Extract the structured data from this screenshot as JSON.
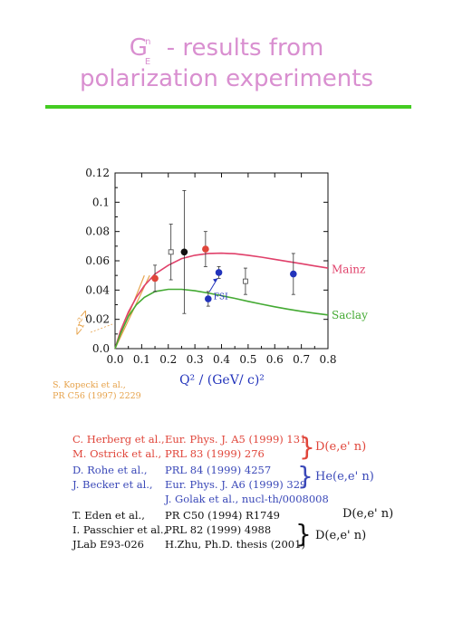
{
  "title": {
    "line1_prefix": "G",
    "line1_sub": "E",
    "line1_sup": "n",
    "line1_rest": " - results from",
    "line2": "polarization  experiments"
  },
  "chart_data": {
    "type": "scatter",
    "xlabel": "Q² / (GeV/ c)²",
    "ylabel": "",
    "xlim": [
      0.0,
      0.8
    ],
    "ylim": [
      0.0,
      0.12
    ],
    "xticks": [
      "0.0",
      "0.1",
      "0.2",
      "0.3",
      "0.4",
      "0.5",
      "0.6",
      "0.7",
      "0.8"
    ],
    "yticks": [
      "0.0",
      "0.02",
      "0.04",
      "0.06",
      "0.08",
      "0.1",
      "0.12"
    ],
    "curves": [
      {
        "name": "Mainz",
        "color": "#e0406a",
        "x": [
          0,
          0.02,
          0.05,
          0.08,
          0.11,
          0.15,
          0.2,
          0.25,
          0.3,
          0.35,
          0.4,
          0.45,
          0.5,
          0.55,
          0.6,
          0.65,
          0.7,
          0.75,
          0.8
        ],
        "y": [
          0,
          0.012,
          0.025,
          0.035,
          0.043,
          0.051,
          0.057,
          0.0615,
          0.0638,
          0.065,
          0.0652,
          0.0648,
          0.0638,
          0.0625,
          0.061,
          0.0595,
          0.058,
          0.0565,
          0.055
        ]
      },
      {
        "name": "Saclay",
        "color": "#44aa33",
        "x": [
          0,
          0.02,
          0.05,
          0.08,
          0.11,
          0.15,
          0.2,
          0.25,
          0.3,
          0.35,
          0.4,
          0.45,
          0.5,
          0.55,
          0.6,
          0.65,
          0.7,
          0.75,
          0.8
        ],
        "y": [
          0,
          0.01,
          0.022,
          0.03,
          0.035,
          0.039,
          0.0405,
          0.0405,
          0.0395,
          0.038,
          0.0362,
          0.0343,
          0.0323,
          0.0304,
          0.0286,
          0.027,
          0.0255,
          0.0242,
          0.023
        ]
      }
    ],
    "slope_lines": [
      {
        "color": "#e6a24a",
        "x": [
          0.0,
          0.13
        ],
        "y": [
          0.0,
          0.05
        ]
      },
      {
        "color": "#e6a24a",
        "x": [
          0.0,
          0.11
        ],
        "y": [
          0.0,
          0.05
        ]
      }
    ],
    "points": [
      {
        "x": 0.15,
        "y": 0.048,
        "err": 0.009,
        "color": "#e0453a",
        "style": "filled"
      },
      {
        "x": 0.21,
        "y": 0.066,
        "err": 0.019,
        "color": "#555555",
        "style": "open"
      },
      {
        "x": 0.26,
        "y": 0.066,
        "err": 0.042,
        "color": "#111111",
        "style": "filled"
      },
      {
        "x": 0.34,
        "y": 0.068,
        "err": 0.012,
        "color": "#e0453a",
        "style": "filled"
      },
      {
        "x": 0.35,
        "y": 0.034,
        "err": 0.005,
        "color": "#2233bb",
        "style": "filled"
      },
      {
        "x": 0.39,
        "y": 0.052,
        "err": 0.004,
        "color": "#2233bb",
        "style": "filled"
      },
      {
        "x": 0.49,
        "y": 0.046,
        "err": 0.009,
        "color": "#555555",
        "style": "open"
      },
      {
        "x": 0.67,
        "y": 0.051,
        "err": 0.014,
        "color": "#2233bb",
        "style": "filled"
      }
    ],
    "annotations": {
      "fsi": "FSI",
      "rmsr": "<r²>",
      "mainz": "Mainz",
      "saclay": "Saclay"
    }
  },
  "kopecki": {
    "line1": "S. Kopecki et al.,",
    "line2": "PR C56 (1997) 2229"
  },
  "references": [
    {
      "author": "C. Herberg et al.,",
      "ref": "Eur. Phys. J. A5 (1999) 131",
      "class": "red"
    },
    {
      "author": "M. Ostrick et al.,",
      "ref": "PRL 83 (1999) 276",
      "class": "red"
    },
    {
      "author": "D. Rohe et al.,",
      "ref": "PRL 84 (1999) 4257",
      "class": "blue"
    },
    {
      "author": "J. Becker et al.,",
      "ref": "Eur. Phys. J. A6 (1999) 329",
      "class": "blue"
    },
    {
      "author": "",
      "ref": "J. Golak et al., nucl-th/0008008",
      "class": "blue"
    },
    {
      "author": "T. Eden et al.,",
      "ref": "PR C50 (1994) R1749",
      "class": "black"
    },
    {
      "author": "I. Passchier et al.,",
      "ref": "PRL 82 (1999) 4988",
      "class": "black"
    },
    {
      "author": "JLab E93-026",
      "ref": "H.Zhu, Ph.D. thesis (2001)",
      "class": "black"
    }
  ],
  "reactions": {
    "r1": "D(e,e' n)",
    "r2": "He(e,e' n)",
    "r3": "D(e,e' n)",
    "r4": "D(e,e' n)"
  },
  "colors": {
    "title": "#d98fd0",
    "rule": "#44cc22",
    "red": "#e0453a",
    "blue": "#3a48b8",
    "orange": "#e6a24a"
  }
}
